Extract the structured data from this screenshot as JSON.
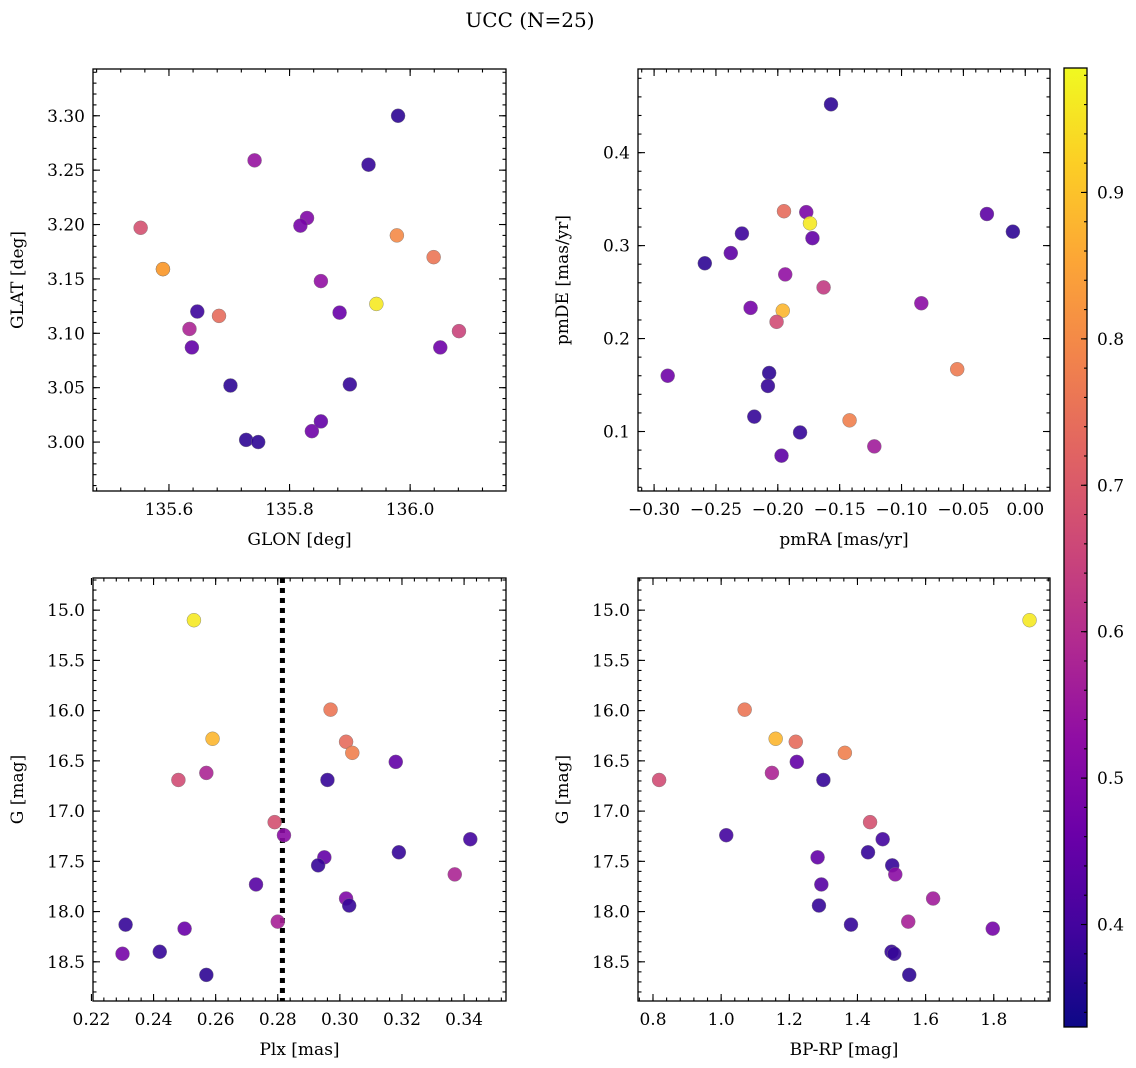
{
  "title": "UCC (N=25)",
  "colorbar": {
    "cmap": "plasma",
    "vmin": 0.33,
    "vmax": 0.985,
    "ticks": [
      "0.4",
      "0.5",
      "0.6",
      "0.7",
      "0.8",
      "0.9"
    ]
  },
  "chart_data": [
    {
      "type": "scatter",
      "xlabel": "GLON [deg]",
      "ylabel": "GLAT [deg]",
      "xlim": [
        135.474,
        136.159
      ],
      "ylim": [
        2.955,
        3.343
      ],
      "x_ticks": [
        "135.6",
        "135.8",
        "136.0"
      ],
      "y_ticks": [
        "3.00",
        "3.05",
        "3.10",
        "3.15",
        "3.20",
        "3.25",
        "3.30"
      ],
      "x": [
        135.553,
        135.59,
        135.742,
        135.829,
        135.818,
        135.852,
        135.883,
        135.931,
        135.98,
        135.978,
        136.039,
        135.944,
        136.05,
        136.081,
        135.647,
        135.683,
        135.634,
        135.638,
        135.702,
        135.728,
        135.748,
        135.837,
        135.852,
        135.9,
        135.59
      ],
      "y": [
        3.197,
        3.159,
        3.259,
        3.206,
        3.199,
        3.148,
        3.119,
        3.255,
        3.3,
        3.19,
        3.17,
        3.127,
        3.087,
        3.102,
        3.12,
        3.116,
        3.104,
        3.087,
        3.052,
        3.002,
        3.0,
        3.01,
        3.019,
        3.053,
        3.159
      ],
      "c": [
        0.68,
        0.84,
        0.54,
        0.5,
        0.48,
        0.53,
        0.46,
        0.38,
        0.37,
        0.8,
        0.76,
        0.96,
        0.47,
        0.65,
        0.39,
        0.74,
        0.58,
        0.45,
        0.37,
        0.37,
        0.37,
        0.47,
        0.45,
        0.38,
        0.84
      ]
    },
    {
      "type": "scatter",
      "xlabel": "pmRA [mas/yr]",
      "ylabel": "pmDE [mas/yr]",
      "xlim": [
        -0.313,
        0.02
      ],
      "ylim": [
        0.036,
        0.49
      ],
      "x_ticks": [
        "−0.30",
        "−0.25",
        "−0.20",
        "−0.15",
        "−0.10",
        "−0.05",
        "0.00"
      ],
      "y_ticks": [
        "0.1",
        "0.2",
        "0.3",
        "0.4"
      ],
      "x": [
        -0.157,
        -0.195,
        -0.177,
        -0.174,
        -0.172,
        -0.194,
        -0.163,
        -0.196,
        -0.201,
        -0.222,
        -0.238,
        -0.229,
        -0.259,
        -0.289,
        -0.207,
        -0.208,
        -0.219,
        -0.182,
        -0.197,
        -0.142,
        -0.122,
        -0.084,
        -0.055,
        -0.031,
        -0.01
      ],
      "y": [
        0.452,
        0.337,
        0.336,
        0.324,
        0.308,
        0.269,
        0.255,
        0.23,
        0.218,
        0.233,
        0.292,
        0.313,
        0.281,
        0.16,
        0.163,
        0.149,
        0.116,
        0.099,
        0.074,
        0.112,
        0.084,
        0.238,
        0.167,
        0.334,
        0.315
      ],
      "c": [
        0.37,
        0.74,
        0.49,
        0.96,
        0.45,
        0.53,
        0.63,
        0.88,
        0.67,
        0.48,
        0.44,
        0.39,
        0.37,
        0.47,
        0.37,
        0.38,
        0.38,
        0.38,
        0.44,
        0.78,
        0.56,
        0.52,
        0.77,
        0.44,
        0.37
      ]
    },
    {
      "type": "scatter",
      "xlabel": "Plx [mas]",
      "ylabel": "G [mag]",
      "xlim": [
        0.2205,
        0.3535
      ],
      "ylim": [
        18.89,
        14.68
      ],
      "x_ticks": [
        "0.22",
        "0.24",
        "0.26",
        "0.28",
        "0.30",
        "0.32",
        "0.34"
      ],
      "y_ticks": [
        "15.0",
        "15.5",
        "16.0",
        "16.5",
        "17.0",
        "17.5",
        "18.0",
        "18.5"
      ],
      "vline": 0.2815,
      "x": [
        0.253,
        0.297,
        0.259,
        0.302,
        0.304,
        0.318,
        0.248,
        0.257,
        0.296,
        0.279,
        0.282,
        0.342,
        0.319,
        0.295,
        0.293,
        0.273,
        0.337,
        0.302,
        0.303,
        0.28,
        0.231,
        0.25,
        0.23,
        0.242,
        0.257
      ],
      "y": [
        15.1,
        15.99,
        16.28,
        16.31,
        16.42,
        16.51,
        16.69,
        16.62,
        16.69,
        17.11,
        17.24,
        17.28,
        17.41,
        17.46,
        17.54,
        17.73,
        17.63,
        17.87,
        17.94,
        18.1,
        18.13,
        18.17,
        18.42,
        18.4,
        18.63
      ],
      "c": [
        0.96,
        0.76,
        0.88,
        0.74,
        0.78,
        0.45,
        0.67,
        0.58,
        0.38,
        0.68,
        0.52,
        0.4,
        0.38,
        0.45,
        0.38,
        0.43,
        0.58,
        0.5,
        0.38,
        0.57,
        0.38,
        0.46,
        0.48,
        0.38,
        0.37
      ]
    },
    {
      "type": "scatter",
      "xlabel": "BP-RP [mag]",
      "ylabel": "G [mag]",
      "xlim": [
        0.756,
        1.965
      ],
      "ylim": [
        18.89,
        14.68
      ],
      "x_ticks": [
        "0.8",
        "1.0",
        "1.2",
        "1.4",
        "1.6",
        "1.8"
      ],
      "y_ticks": [
        "15.0",
        "15.5",
        "16.0",
        "16.5",
        "17.0",
        "17.5",
        "18.0",
        "18.5"
      ],
      "x": [
        1.905,
        1.069,
        1.16,
        1.219,
        1.363,
        1.222,
        1.3,
        1.149,
        0.818,
        1.437,
        1.015,
        1.474,
        1.431,
        1.283,
        1.502,
        1.511,
        1.294,
        1.622,
        1.287,
        1.549,
        1.381,
        1.797,
        1.5,
        1.508,
        1.552
      ],
      "y": [
        15.1,
        15.99,
        16.28,
        16.31,
        16.42,
        16.51,
        16.69,
        16.62,
        16.69,
        17.11,
        17.24,
        17.28,
        17.41,
        17.46,
        17.54,
        17.63,
        17.73,
        17.87,
        17.94,
        18.1,
        18.13,
        18.17,
        18.4,
        18.42,
        18.63
      ],
      "c": [
        0.96,
        0.76,
        0.88,
        0.74,
        0.78,
        0.45,
        0.38,
        0.58,
        0.67,
        0.68,
        0.4,
        0.4,
        0.38,
        0.45,
        0.38,
        0.52,
        0.43,
        0.56,
        0.38,
        0.57,
        0.38,
        0.48,
        0.38,
        0.38,
        0.37
      ]
    }
  ]
}
